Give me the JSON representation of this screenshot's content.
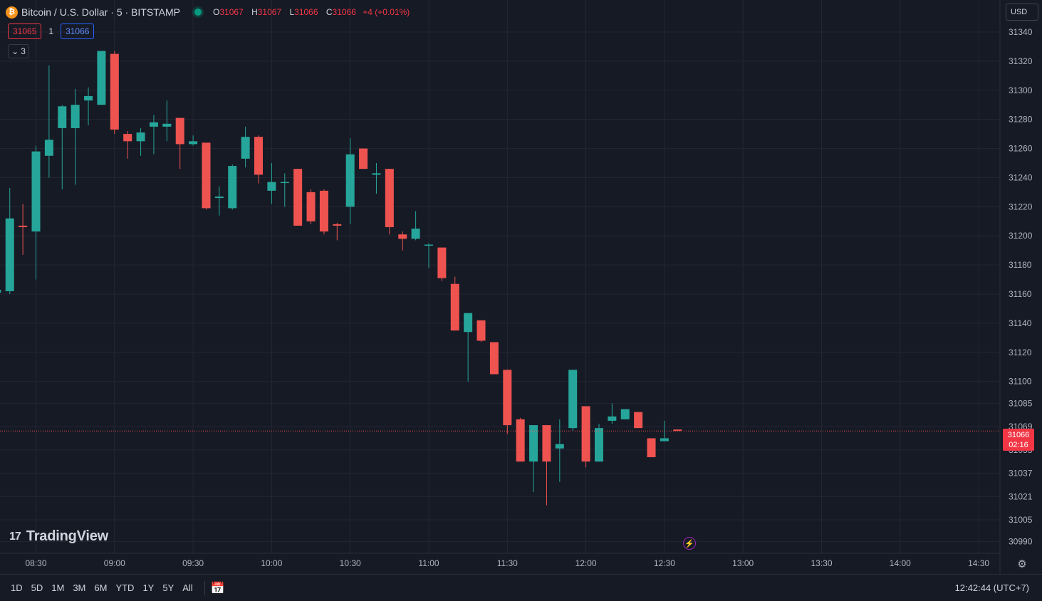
{
  "header": {
    "symbol_title": "Bitcoin / U.S. Dollar · 5 · BITSTAMP",
    "coin_icon": "bitcoin-icon",
    "ohlc": {
      "o_label": "O",
      "o": "31067",
      "h_label": "H",
      "h": "31067",
      "l_label": "L",
      "l": "31066",
      "c_label": "C",
      "c": "31066",
      "change": "+4 (+0.01%)"
    }
  },
  "quote": {
    "bid": "31065",
    "spread": "1",
    "ask": "31066"
  },
  "indicators_toggle": {
    "count": "3"
  },
  "currency": "USD",
  "last_price": {
    "value": "31066",
    "countdown": "02:16"
  },
  "logo": {
    "text": "TradingView",
    "mark": "17"
  },
  "bottom_bar": {
    "ranges": [
      "1D",
      "5D",
      "1M",
      "3M",
      "6M",
      "YTD",
      "1Y",
      "5Y",
      "All"
    ],
    "clock": "12:42:44 (UTC+7)"
  },
  "colors": {
    "up": "#26a69a",
    "down": "#ef5350",
    "background": "#161a25",
    "grid": "#242733"
  },
  "chart_data": {
    "type": "candlestick",
    "title": "Bitcoin / U.S. Dollar · 5 · BITSTAMP",
    "interval_minutes": 5,
    "ylim": [
      30982,
      31362
    ],
    "y_ticks": [
      31340,
      31320,
      31300,
      31280,
      31260,
      31240,
      31220,
      31200,
      31180,
      31160,
      31140,
      31120,
      31100,
      31085,
      31069,
      31053,
      31037,
      31021,
      31005,
      30990
    ],
    "x_ticks": [
      "08:30",
      "09:00",
      "09:30",
      "10:00",
      "10:30",
      "11:00",
      "11:30",
      "12:00",
      "12:30",
      "13:00",
      "13:30",
      "14:00",
      "14:30"
    ],
    "x_range": [
      "08:25",
      "14:40"
    ],
    "grid": true,
    "current_price": 31066,
    "candles": [
      {
        "t": "08:15",
        "o": 31161,
        "h": 31190,
        "l": 31150,
        "c": 31163
      },
      {
        "t": "08:20",
        "o": 31162,
        "h": 31233,
        "l": 31160,
        "c": 31212
      },
      {
        "t": "08:25",
        "o": 31207,
        "h": 31222,
        "l": 31187,
        "c": 31206
      },
      {
        "t": "08:30",
        "o": 31203,
        "h": 31262,
        "l": 31170,
        "c": 31258
      },
      {
        "t": "08:35",
        "o": 31255,
        "h": 31317,
        "l": 31240,
        "c": 31266
      },
      {
        "t": "08:40",
        "o": 31274,
        "h": 31290,
        "l": 31232,
        "c": 31289
      },
      {
        "t": "08:45",
        "o": 31274,
        "h": 31301,
        "l": 31235,
        "c": 31290
      },
      {
        "t": "08:50",
        "o": 31293,
        "h": 31302,
        "l": 31276,
        "c": 31296
      },
      {
        "t": "08:55",
        "o": 31290,
        "h": 31327,
        "l": 31290,
        "c": 31327
      },
      {
        "t": "09:00",
        "o": 31325,
        "h": 31327,
        "l": 31270,
        "c": 31273
      },
      {
        "t": "09:05",
        "o": 31270,
        "h": 31272,
        "l": 31253,
        "c": 31265
      },
      {
        "t": "09:10",
        "o": 31265,
        "h": 31274,
        "l": 31255,
        "c": 31271
      },
      {
        "t": "09:15",
        "o": 31275,
        "h": 31283,
        "l": 31256,
        "c": 31278
      },
      {
        "t": "09:20",
        "o": 31275,
        "h": 31293,
        "l": 31265,
        "c": 31277
      },
      {
        "t": "09:25",
        "o": 31281,
        "h": 31281,
        "l": 31246,
        "c": 31263
      },
      {
        "t": "09:30",
        "o": 31263,
        "h": 31269,
        "l": 31262,
        "c": 31265
      },
      {
        "t": "09:35",
        "o": 31264,
        "h": 31264,
        "l": 31218,
        "c": 31219
      },
      {
        "t": "09:40",
        "o": 31226,
        "h": 31234,
        "l": 31214,
        "c": 31227
      },
      {
        "t": "09:45",
        "o": 31219,
        "h": 31249,
        "l": 31218,
        "c": 31248
      },
      {
        "t": "09:50",
        "o": 31253,
        "h": 31275,
        "l": 31247,
        "c": 31268
      },
      {
        "t": "09:55",
        "o": 31268,
        "h": 31269,
        "l": 31236,
        "c": 31242
      },
      {
        "t": "10:00",
        "o": 31231,
        "h": 31250,
        "l": 31222,
        "c": 31237
      },
      {
        "t": "10:05",
        "o": 31237,
        "h": 31243,
        "l": 31220,
        "c": 31237
      },
      {
        "t": "10:10",
        "o": 31246,
        "h": 31246,
        "l": 31207,
        "c": 31207
      },
      {
        "t": "10:15",
        "o": 31230,
        "h": 31232,
        "l": 31208,
        "c": 31210
      },
      {
        "t": "10:20",
        "o": 31231,
        "h": 31232,
        "l": 31201,
        "c": 31203
      },
      {
        "t": "10:25",
        "o": 31208,
        "h": 31209,
        "l": 31197,
        "c": 31207
      },
      {
        "t": "10:30",
        "o": 31220,
        "h": 31267,
        "l": 31208,
        "c": 31256
      },
      {
        "t": "10:35",
        "o": 31260,
        "h": 31260,
        "l": 31246,
        "c": 31246
      },
      {
        "t": "10:40",
        "o": 31242,
        "h": 31250,
        "l": 31229,
        "c": 31243
      },
      {
        "t": "10:45",
        "o": 31246,
        "h": 31246,
        "l": 31201,
        "c": 31206
      },
      {
        "t": "10:50",
        "o": 31201,
        "h": 31203,
        "l": 31190,
        "c": 31198
      },
      {
        "t": "10:55",
        "o": 31198,
        "h": 31217,
        "l": 31197,
        "c": 31205
      },
      {
        "t": "11:00",
        "o": 31194,
        "h": 31195,
        "l": 31178,
        "c": 31194
      },
      {
        "t": "11:05",
        "o": 31192,
        "h": 31192,
        "l": 31169,
        "c": 31171
      },
      {
        "t": "11:10",
        "o": 31167,
        "h": 31172,
        "l": 31135,
        "c": 31135
      },
      {
        "t": "11:15",
        "o": 31134,
        "h": 31147,
        "l": 31100,
        "c": 31147
      },
      {
        "t": "11:20",
        "o": 31142,
        "h": 31142,
        "l": 31127,
        "c": 31128
      },
      {
        "t": "11:25",
        "o": 31127,
        "h": 31127,
        "l": 31105,
        "c": 31105
      },
      {
        "t": "11:30",
        "o": 31108,
        "h": 31108,
        "l": 31064,
        "c": 31070
      },
      {
        "t": "11:35",
        "o": 31074,
        "h": 31075,
        "l": 31045,
        "c": 31045
      },
      {
        "t": "11:40",
        "o": 31045,
        "h": 31070,
        "l": 31024,
        "c": 31070
      },
      {
        "t": "11:45",
        "o": 31070,
        "h": 31070,
        "l": 31015,
        "c": 31045
      },
      {
        "t": "11:50",
        "o": 31054,
        "h": 31074,
        "l": 31031,
        "c": 31057
      },
      {
        "t": "11:55",
        "o": 31068,
        "h": 31108,
        "l": 31066,
        "c": 31108
      },
      {
        "t": "12:00",
        "o": 31083,
        "h": 31083,
        "l": 31041,
        "c": 31045
      },
      {
        "t": "12:05",
        "o": 31045,
        "h": 31071,
        "l": 31045,
        "c": 31068
      },
      {
        "t": "12:10",
        "o": 31073,
        "h": 31085,
        "l": 31071,
        "c": 31076
      },
      {
        "t": "12:15",
        "o": 31074,
        "h": 31081,
        "l": 31074,
        "c": 31081
      },
      {
        "t": "12:20",
        "o": 31079,
        "h": 31079,
        "l": 31068,
        "c": 31068
      },
      {
        "t": "12:25",
        "o": 31061,
        "h": 31061,
        "l": 31048,
        "c": 31048
      },
      {
        "t": "12:30",
        "o": 31059,
        "h": 31073,
        "l": 31059,
        "c": 31061
      },
      {
        "t": "12:35",
        "o": 31067,
        "h": 31067,
        "l": 31066,
        "c": 31066
      }
    ]
  }
}
